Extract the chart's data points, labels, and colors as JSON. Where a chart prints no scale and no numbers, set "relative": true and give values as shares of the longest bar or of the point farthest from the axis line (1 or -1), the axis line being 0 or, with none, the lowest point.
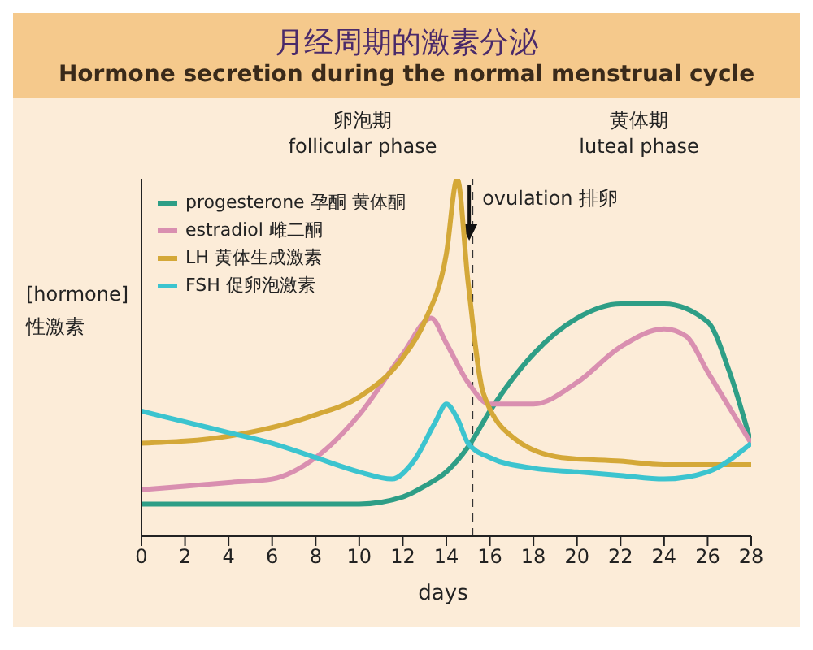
{
  "chart_data": {
    "type": "line",
    "title": "月经周期的激素分泌",
    "subtitle": "Hormone secretion during the normal menstrual cycle",
    "xlabel": "days",
    "ylabel": "[hormone] 性激素",
    "relative": true,
    "xlim": [
      0,
      28
    ],
    "xticks": [
      0,
      2,
      4,
      6,
      8,
      10,
      12,
      14,
      16,
      18,
      20,
      22,
      24,
      26,
      28
    ],
    "series": [
      {
        "name": "progesterone 孕酮 黄体酮",
        "color": "#2e9e86",
        "x": [
          0,
          4,
          8,
          10,
          12,
          13,
          14,
          15,
          16,
          18,
          20,
          22,
          24,
          26,
          27,
          28
        ],
        "values": [
          0.09,
          0.09,
          0.09,
          0.09,
          0.11,
          0.14,
          0.18,
          0.25,
          0.35,
          0.51,
          0.61,
          0.65,
          0.65,
          0.6,
          0.46,
          0.26
        ]
      },
      {
        "name": "estradiol 雌二酮",
        "color": "#d98fb0",
        "x": [
          0,
          4,
          6,
          8,
          10,
          12,
          13.3,
          14,
          15,
          16,
          18,
          20,
          22,
          24,
          25,
          26,
          28
        ],
        "values": [
          0.13,
          0.15,
          0.16,
          0.22,
          0.34,
          0.51,
          0.61,
          0.54,
          0.43,
          0.37,
          0.37,
          0.43,
          0.53,
          0.58,
          0.56,
          0.46,
          0.26
        ]
      },
      {
        "name": "LH 黄体生成激素",
        "color": "#d4a838",
        "x": [
          0,
          4,
          8,
          10,
          12,
          13,
          14,
          14.5,
          15,
          15.7,
          17.2,
          19.3,
          22,
          24,
          28
        ],
        "values": [
          0.26,
          0.28,
          0.34,
          0.39,
          0.5,
          0.6,
          0.79,
          1,
          0.71,
          0.4,
          0.27,
          0.22,
          0.21,
          0.2,
          0.2
        ]
      },
      {
        "name": "FSH 促卵泡激素",
        "color": "#3cc4cf",
        "x": [
          0,
          2,
          4,
          6,
          8,
          10,
          11.5,
          12.5,
          13.5,
          14,
          14.5,
          15,
          16,
          18,
          20,
          22,
          24,
          26,
          28
        ],
        "values": [
          0.35,
          0.32,
          0.29,
          0.26,
          0.22,
          0.18,
          0.16,
          0.21,
          0.32,
          0.37,
          0.33,
          0.26,
          0.22,
          0.19,
          0.18,
          0.17,
          0.16,
          0.18,
          0.26
        ]
      }
    ],
    "ref_lines": [
      {
        "axis": "x",
        "value": 15.2,
        "label": "ovulation 排卵",
        "line_style": "dashed"
      }
    ],
    "annotations": [
      "卵泡期",
      "follicular phase",
      "黄体期",
      "luteal phase"
    ],
    "legend": "top left",
    "grid": false,
    "marker": "none",
    "line_style": "solid"
  }
}
